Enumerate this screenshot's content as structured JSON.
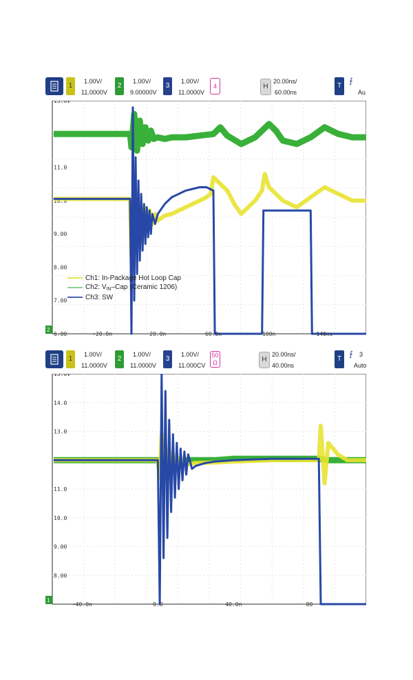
{
  "scopes": [
    {
      "toolbar": {
        "ch1": {
          "num": "1",
          "scale": "1.00V/",
          "offset": "11.0000V",
          "color": "#c9c21a"
        },
        "ch2": {
          "num": "2",
          "scale": "1.00V/",
          "offset": "9.00000V",
          "color": "#2e9b34"
        },
        "ch3": {
          "num": "3",
          "scale": "1.00V/",
          "offset": "11.0000V",
          "color": "#27418f"
        },
        "math": {
          "label": "4"
        },
        "horizontal": {
          "badge": "H",
          "scale": "20.00ns/",
          "delay": "60.00ns"
        },
        "trigger": {
          "badge": "T",
          "symbol": "⨍",
          "mode": "Au"
        }
      },
      "legend": [
        {
          "label": "Ch1: In-Package Hot Loop Cap",
          "color": "#e9e44a"
        },
        {
          "pre": "Ch2: V",
          "sub": "IN",
          "post": "–Cap (Ceramic 1206)",
          "color": "#8fd08f"
        },
        {
          "label": "Ch3: SW",
          "color": "#4a63b5"
        }
      ]
    },
    {
      "toolbar": {
        "ch1": {
          "num": "1",
          "scale": "1.00V/",
          "offset": "11.0000V",
          "color": "#c9c21a"
        },
        "ch2": {
          "num": "2",
          "scale": "1.00V/",
          "offset": "11.0000V",
          "color": "#2e9b34"
        },
        "ch3": {
          "num": "3",
          "scale": "1.00V/",
          "offset": "11.000CV",
          "color": "#27418f"
        },
        "math": {
          "label": "50",
          "sub": "Ω"
        },
        "horizontal": {
          "badge": "H",
          "scale": "20.00ns/",
          "delay": "40.00ns"
        },
        "trigger": {
          "badge": "T",
          "symbol": "⨍",
          "mode": "Auto",
          "extra": "3"
        }
      }
    }
  ],
  "chart_data": [
    {
      "type": "line",
      "ylim": [
        6.0,
        13.0
      ],
      "xlim": [
        -55,
        170
      ],
      "ytick_labels": [
        "13.0V",
        "12.0",
        "11.0",
        "10.0",
        "9.00",
        "8.00",
        "7.00",
        "6.00"
      ],
      "yticks": [
        13,
        12,
        11,
        10,
        9,
        8,
        7,
        6
      ],
      "xtick_labels": [
        "-20.0n",
        "20.0n",
        "60.0n",
        "100n",
        "140ns"
      ],
      "xticks": [
        -20,
        20,
        60,
        100,
        140
      ],
      "corner_label": "2",
      "series": [
        {
          "name": "Ch1: In-Package Hot Loop Cap",
          "color": "#e8e332",
          "x": [
            -55,
            0,
            1,
            2,
            4,
            6,
            8,
            10,
            12,
            14,
            16,
            18,
            20,
            25,
            30,
            35,
            40,
            45,
            50,
            55,
            58,
            60,
            70,
            75,
            80,
            90,
            95,
            97,
            100,
            110,
            120,
            130,
            140,
            150,
            160,
            170
          ],
          "y": [
            10.05,
            10.05,
            8.3,
            9.3,
            8.6,
            9.7,
            8.9,
            9.8,
            9.1,
            9.7,
            9.3,
            9.6,
            9.4,
            9.55,
            9.6,
            9.7,
            9.8,
            9.9,
            10.0,
            10.1,
            10.2,
            10.7,
            10.3,
            9.9,
            9.6,
            10.0,
            10.3,
            10.8,
            10.4,
            10.0,
            9.8,
            10.1,
            10.4,
            10.2,
            10.0,
            10.0
          ]
        },
        {
          "name": "Ch2: VIN–Cap (Ceramic 1206)",
          "color": "#39b039",
          "x": [
            -55,
            0,
            1,
            3,
            5,
            7,
            9,
            11,
            13,
            15,
            17,
            20,
            25,
            30,
            40,
            50,
            60,
            65,
            70,
            80,
            90,
            95,
            100,
            105,
            110,
            120,
            130,
            140,
            150,
            160,
            170
          ],
          "y": [
            12.0,
            12.0,
            11.6,
            12.6,
            11.5,
            12.4,
            11.7,
            12.2,
            11.8,
            12.1,
            11.85,
            11.9,
            11.85,
            11.9,
            11.9,
            11.95,
            12.0,
            12.2,
            11.95,
            11.7,
            11.9,
            12.1,
            12.3,
            12.1,
            11.8,
            11.7,
            11.9,
            12.2,
            12.0,
            11.9,
            11.9
          ]
        },
        {
          "name": "Ch3: SW",
          "color": "#2748a6",
          "x": [
            -55,
            0,
            1,
            2,
            3,
            4,
            5,
            6,
            7,
            8,
            9,
            10,
            11,
            12,
            13,
            14,
            15,
            16,
            18,
            20,
            25,
            30,
            40,
            50,
            55,
            60,
            61,
            62,
            75,
            90,
            95,
            96,
            97,
            110,
            125,
            130,
            131,
            132,
            170
          ],
          "y": [
            10.05,
            10.05,
            6.0,
            12.8,
            7.0,
            11.3,
            7.8,
            10.6,
            8.2,
            10.2,
            8.5,
            9.9,
            8.7,
            9.8,
            8.9,
            9.7,
            9.0,
            9.6,
            9.3,
            9.6,
            9.9,
            10.1,
            10.3,
            10.4,
            10.4,
            10.3,
            6.0,
            6.0,
            6.0,
            6.0,
            6.0,
            9.7,
            9.7,
            9.7,
            9.7,
            9.7,
            6.0,
            6.0,
            6.0
          ]
        }
      ]
    },
    {
      "type": "line",
      "ylim": [
        7.0,
        15.0
      ],
      "xlim": [
        -55,
        110
      ],
      "ytick_labels": [
        "15.0V",
        "14.0",
        "13.0",
        "12.0",
        "11.0",
        "10.0",
        "9.00",
        "8.00"
      ],
      "yticks": [
        15,
        14,
        13,
        12,
        11,
        10,
        9,
        8
      ],
      "xtick_labels": [
        "-40.0n",
        "0.0",
        "40.0n",
        "80",
        "120ns"
      ],
      "xticks": [
        -40,
        0,
        40,
        80,
        120
      ],
      "corner_label": "1",
      "series": [
        {
          "name": "Ch1: In-Package Hot Loop Cap",
          "color": "#e8e332",
          "x": [
            -55,
            0,
            1,
            2,
            3,
            4,
            5,
            6,
            7,
            8,
            10,
            12,
            15,
            20,
            30,
            40,
            60,
            80,
            85,
            86,
            88,
            90,
            95,
            100,
            110
          ],
          "y": [
            12.0,
            12.0,
            11.4,
            12.9,
            11.2,
            12.5,
            11.5,
            12.3,
            11.6,
            12.2,
            11.7,
            12.1,
            11.85,
            11.9,
            11.92,
            11.95,
            12.0,
            12.0,
            12.0,
            13.2,
            11.2,
            12.6,
            12.2,
            12.0,
            12.0
          ]
        },
        {
          "name": "Ch2: VIN–Cap (Ceramic 1206)",
          "color": "#39b039",
          "x": [
            -55,
            0,
            2,
            4,
            6,
            8,
            10,
            15,
            20,
            30,
            40,
            60,
            80,
            85,
            90,
            100,
            110
          ],
          "y": [
            12.0,
            12.0,
            11.8,
            12.1,
            11.9,
            12.05,
            11.95,
            12.0,
            12.0,
            12.0,
            12.05,
            12.05,
            12.05,
            12.05,
            12.0,
            12.0,
            12.0
          ]
        },
        {
          "name": "Ch3: SW",
          "color": "#2748a6",
          "x": [
            -55,
            0,
            1,
            2,
            3,
            4,
            5,
            6,
            7,
            8,
            9,
            10,
            11,
            12,
            13,
            14,
            15,
            16,
            18,
            20,
            25,
            30,
            40,
            60,
            85,
            86,
            87,
            90,
            92,
            110
          ],
          "y": [
            12.0,
            12.0,
            7.0,
            15.0,
            8.6,
            14.4,
            9.3,
            13.4,
            10.2,
            12.9,
            10.7,
            12.6,
            11.0,
            12.4,
            11.3,
            12.3,
            11.5,
            12.2,
            11.7,
            11.8,
            11.9,
            11.95,
            12.0,
            12.05,
            12.05,
            7.0,
            7.0,
            7.0,
            7.0,
            7.0
          ]
        }
      ]
    }
  ]
}
